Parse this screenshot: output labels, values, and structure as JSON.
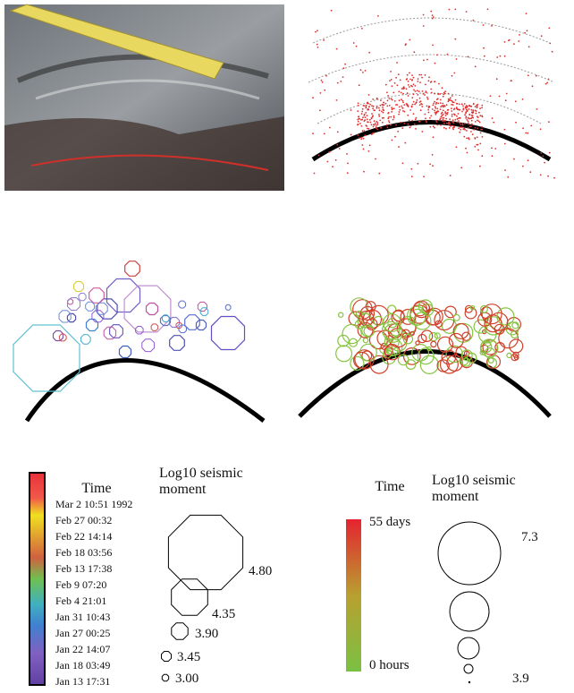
{
  "legend_left": {
    "time_title": "Time",
    "time_labels": [
      "Mar 2 10:51 1992",
      "Feb 27 00:32",
      "Feb 22 14:14",
      "Feb 18 03:56",
      "Feb 13 17:38",
      "Feb 9 07:20",
      "Feb 4 21:01",
      "Jan 31 10:43",
      "Jan 27 00:25",
      "Jan 22 14:07",
      "Jan 18 03:49",
      "Jan 13 17:31"
    ],
    "moment_title": [
      "Log10 seismic",
      "moment"
    ],
    "sizes": [
      "4.80",
      "4.35",
      "3.90",
      "3.45",
      "3.00"
    ]
  },
  "legend_right": {
    "time_title": "Time",
    "time_top": "55 days",
    "time_bottom": "0 hours",
    "moment_title": [
      "Log10 seismic",
      "moment"
    ],
    "sizes": [
      "7.3",
      "3.9"
    ]
  }
}
